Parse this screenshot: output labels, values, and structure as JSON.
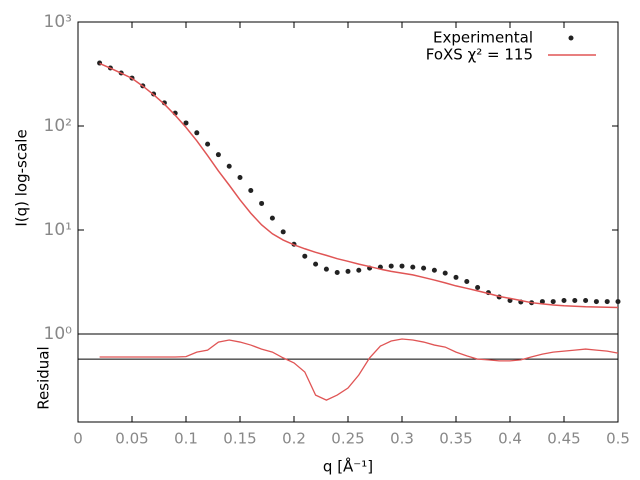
{
  "chart_data": {
    "type": "line",
    "yscale": "log",
    "xlabel": "q [Å⁻¹]",
    "ylabel": "I(q) log-scale",
    "x": [
      0.02,
      0.03,
      0.04,
      0.05,
      0.06,
      0.07,
      0.08,
      0.09,
      0.1,
      0.11,
      0.12,
      0.13,
      0.14,
      0.15,
      0.16,
      0.17,
      0.18,
      0.19,
      0.2,
      0.21,
      0.22,
      0.23,
      0.24,
      0.25,
      0.26,
      0.27,
      0.28,
      0.29,
      0.3,
      0.31,
      0.32,
      0.33,
      0.34,
      0.35,
      0.36,
      0.37,
      0.38,
      0.39,
      0.4,
      0.41,
      0.42,
      0.43,
      0.44,
      0.45,
      0.46,
      0.47,
      0.48,
      0.49,
      0.5
    ],
    "series": [
      {
        "name": "Experimental",
        "color": "#222222",
        "marker": "point",
        "values": [
          403,
          361,
          323,
          289,
          243,
          203,
          167,
          133,
          107,
          86,
          67,
          53,
          41,
          32,
          24,
          18,
          13,
          9.6,
          7.3,
          5.6,
          4.7,
          4.2,
          3.9,
          4.0,
          4.1,
          4.3,
          4.4,
          4.5,
          4.5,
          4.4,
          4.3,
          4.1,
          3.85,
          3.5,
          3.2,
          2.8,
          2.5,
          2.27,
          2.1,
          2.03,
          2.0,
          2.05,
          2.05,
          2.1,
          2.1,
          2.1,
          2.05,
          2.05,
          2.05
        ]
      },
      {
        "name": "FoXS χ² = 115",
        "color": "#e05555",
        "marker": "line",
        "values": [
          400,
          360,
          322,
          287,
          242,
          200,
          162,
          127,
          97,
          72,
          52,
          37,
          27,
          19.5,
          14.5,
          11.2,
          9.2,
          8.0,
          7.2,
          6.6,
          6.1,
          5.7,
          5.3,
          5.0,
          4.7,
          4.45,
          4.2,
          4.0,
          3.85,
          3.7,
          3.5,
          3.3,
          3.1,
          2.9,
          2.75,
          2.6,
          2.45,
          2.3,
          2.2,
          2.1,
          2.0,
          1.95,
          1.9,
          1.87,
          1.85,
          1.83,
          1.82,
          1.81,
          1.8
        ]
      }
    ],
    "xlim": [
      0,
      0.5
    ],
    "xticks": [
      0,
      0.05,
      0.1,
      0.15,
      0.2,
      0.25,
      0.3,
      0.35,
      0.4,
      0.45,
      0.5
    ],
    "ylim": [
      1,
      1000
    ],
    "yticks": [
      {
        "value": 1,
        "label": "10⁰"
      },
      {
        "value": 10,
        "label": "10¹"
      },
      {
        "value": 100,
        "label": "10²"
      },
      {
        "value": 1000,
        "label": "10³"
      }
    ],
    "legend": "upper right",
    "residual": {
      "ylabel": "Residual",
      "color": "#e05555",
      "ylim": [
        -2.5,
        1
      ],
      "values": [
        0.085,
        0.085,
        0.085,
        0.085,
        0.085,
        0.085,
        0.085,
        0.085,
        0.1,
        0.28,
        0.36,
        0.68,
        0.76,
        0.68,
        0.56,
        0.4,
        0.28,
        0.05,
        -0.15,
        -0.51,
        -1.43,
        -1.63,
        -1.43,
        -1.15,
        -0.63,
        0.05,
        0.52,
        0.72,
        0.8,
        0.76,
        0.68,
        0.56,
        0.48,
        0.28,
        0.13,
        0,
        -0.03,
        -0.07,
        -0.07,
        -0.03,
        0.09,
        0.2,
        0.28,
        0.32,
        0.36,
        0.4,
        0.36,
        0.32,
        0.24
      ]
    }
  }
}
